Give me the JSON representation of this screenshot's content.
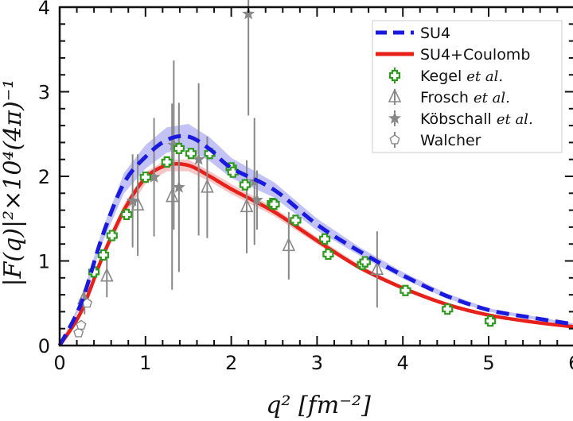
{
  "chart_data": {
    "type": "line",
    "xlabel": "q² [fm⁻²]",
    "ylabel": "|F(q)|²×10⁴(4π)⁻¹",
    "xlim": [
      0,
      6
    ],
    "ylim": [
      0,
      4
    ],
    "xticks": [
      "0",
      "1",
      "2",
      "3",
      "4",
      "5",
      "6"
    ],
    "yticks": [
      "0",
      "1",
      "2",
      "3",
      "4"
    ],
    "grid": false,
    "legend_position": "top-right",
    "series": [
      {
        "name": "SU4",
        "kind": "dashed-line",
        "color": "#1a1adf",
        "band_color": "#9a9af0",
        "x": [
          0,
          0.25,
          0.5,
          0.75,
          1,
          1.25,
          1.5,
          1.75,
          2,
          2.5,
          3,
          3.5,
          4,
          4.5,
          5,
          5.5,
          6
        ],
        "y": [
          0,
          0.5,
          1.3,
          1.92,
          2.23,
          2.43,
          2.47,
          2.32,
          2.1,
          1.84,
          1.43,
          1.11,
          0.83,
          0.59,
          0.42,
          0.33,
          0.25
        ],
        "band": [
          0,
          0.04,
          0.08,
          0.12,
          0.14,
          0.15,
          0.15,
          0.14,
          0.12,
          0.09,
          0.07,
          0.05,
          0.04,
          0.03,
          0.02,
          0.02,
          0.01
        ]
      },
      {
        "name": "SU4+Coulomb",
        "kind": "solid-line",
        "color": "#e8201a",
        "band_color": "#f4a0a0",
        "x": [
          0,
          0.25,
          0.5,
          0.75,
          1,
          1.25,
          1.5,
          1.75,
          2,
          2.5,
          3,
          3.5,
          4,
          4.5,
          5,
          5.5,
          6
        ],
        "y": [
          0,
          0.4,
          1.05,
          1.6,
          1.98,
          2.13,
          2.13,
          2.0,
          1.85,
          1.58,
          1.24,
          0.92,
          0.68,
          0.49,
          0.36,
          0.28,
          0.22
        ],
        "band": [
          0,
          0.03,
          0.05,
          0.07,
          0.07,
          0.07,
          0.07,
          0.06,
          0.06,
          0.05,
          0.04,
          0.03,
          0.02,
          0.02,
          0.01,
          0.01,
          0.01
        ]
      },
      {
        "name": "Kegel",
        "name_suffix": "et al.",
        "kind": "cross-markers",
        "color": "#2e9a1e",
        "x": [
          0.4,
          0.51,
          0.61,
          0.78,
          1.0,
          1.25,
          1.39,
          1.53,
          1.75,
          2.0,
          2.02,
          2.16,
          2.48,
          2.5,
          2.75,
          3.09,
          3.13,
          3.53,
          3.56,
          4.03,
          4.52,
          5.02
        ],
        "y": [
          0.87,
          1.07,
          1.3,
          1.55,
          1.99,
          2.17,
          2.33,
          2.27,
          2.27,
          2.1,
          2.05,
          1.9,
          1.68,
          1.67,
          1.48,
          1.26,
          1.08,
          0.96,
          0.99,
          0.65,
          0.43,
          0.29
        ],
        "err": [
          0.05,
          0.05,
          0.05,
          0.05,
          0.06,
          0.06,
          0.06,
          0.06,
          0.06,
          0.06,
          0.06,
          0.06,
          0.05,
          0.05,
          0.05,
          0.05,
          0.04,
          0.04,
          0.04,
          0.03,
          0.03,
          0.03
        ]
      },
      {
        "name": "Frosch",
        "name_suffix": "et al.",
        "kind": "triangle-markers",
        "color": "#888888",
        "x": [
          0.28,
          0.55,
          0.91,
          1.31,
          1.72,
          2.18,
          2.67,
          3.7
        ],
        "y": [
          0.55,
          0.82,
          1.66,
          1.76,
          1.87,
          1.64,
          1.18,
          0.9
        ],
        "err": [
          0.1,
          0.25,
          0.6,
          1.1,
          0.6,
          0.55,
          0.4,
          0.45
        ]
      },
      {
        "name": "Köbschall",
        "name_suffix": "et al.",
        "kind": "star-markers",
        "color": "#888888",
        "x": [
          0.29,
          0.85,
          1.1,
          1.33,
          1.39,
          1.62,
          2.2,
          2.27,
          2.3
        ],
        "y": [
          0.52,
          1.71,
          1.99,
          2.37,
          1.87,
          2.2,
          3.92,
          1.94,
          1.72
        ],
        "err": [
          0.15,
          0.55,
          0.7,
          1.0,
          1.0,
          0.9,
          1.2,
          0.75,
          0.35
        ]
      },
      {
        "name": "Walcher",
        "name_suffix": "",
        "kind": "pentagon-markers",
        "color": "#888888",
        "x": [
          0.22,
          0.25,
          0.32
        ],
        "y": [
          0.15,
          0.24,
          0.5
        ],
        "err": [
          0.03,
          0.03,
          0.05
        ]
      }
    ]
  }
}
